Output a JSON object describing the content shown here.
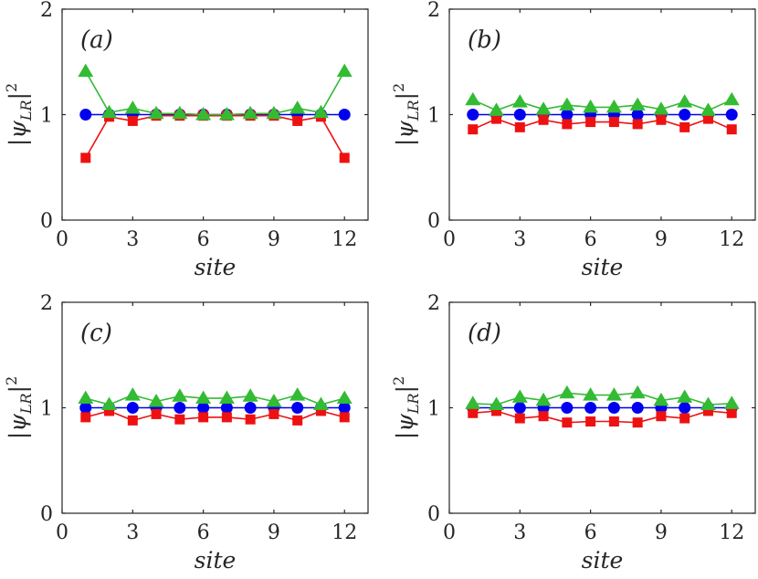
{
  "chart_data": [
    {
      "type": "line",
      "panel_label": "(a)",
      "xlabel": "site",
      "ylabel": "|ψLR|2",
      "ylabel_parts": {
        "open": "|",
        "psi": "ψ",
        "sub": "LR",
        "close": "|",
        "sup": "2"
      },
      "xlim": [
        0,
        13
      ],
      "ylim": [
        0,
        2
      ],
      "xticks": [
        0,
        3,
        6,
        9,
        12
      ],
      "yticks": [
        0,
        1,
        2
      ],
      "x": [
        1,
        2,
        3,
        4,
        5,
        6,
        7,
        8,
        9,
        10,
        11,
        12
      ],
      "series": [
        {
          "name": "blue",
          "color": "#0000ee",
          "marker": "circle",
          "values": [
            1.0,
            1.0,
            1.0,
            1.0,
            1.0,
            1.0,
            1.0,
            1.0,
            1.0,
            1.0,
            1.0,
            1.0
          ]
        },
        {
          "name": "red",
          "color": "#ee1111",
          "marker": "square",
          "values": [
            0.59,
            0.98,
            0.94,
            0.99,
            0.99,
            0.99,
            0.99,
            0.99,
            0.99,
            0.94,
            0.98,
            0.59
          ]
        },
        {
          "name": "green",
          "color": "#33bb33",
          "marker": "triangle",
          "values": [
            1.41,
            1.02,
            1.06,
            1.01,
            1.01,
            1.0,
            1.0,
            1.01,
            1.01,
            1.06,
            1.02,
            1.41
          ]
        }
      ]
    },
    {
      "type": "line",
      "panel_label": "(b)",
      "xlabel": "site",
      "ylabel": "|ψLR|2",
      "ylabel_parts": {
        "open": "|",
        "psi": "ψ",
        "sub": "LR",
        "close": "|",
        "sup": "2"
      },
      "xlim": [
        0,
        13
      ],
      "ylim": [
        0,
        2
      ],
      "xticks": [
        0,
        3,
        6,
        9,
        12
      ],
      "yticks": [
        0,
        1,
        2
      ],
      "x": [
        1,
        2,
        3,
        4,
        5,
        6,
        7,
        8,
        9,
        10,
        11,
        12
      ],
      "series": [
        {
          "name": "blue",
          "color": "#0000ee",
          "marker": "circle",
          "values": [
            1.0,
            1.0,
            1.0,
            1.0,
            1.0,
            1.0,
            1.0,
            1.0,
            1.0,
            1.0,
            1.0,
            1.0
          ]
        },
        {
          "name": "red",
          "color": "#ee1111",
          "marker": "square",
          "values": [
            0.86,
            0.96,
            0.88,
            0.95,
            0.91,
            0.93,
            0.93,
            0.91,
            0.95,
            0.88,
            0.96,
            0.86
          ]
        },
        {
          "name": "green",
          "color": "#33bb33",
          "marker": "triangle",
          "values": [
            1.14,
            1.04,
            1.12,
            1.05,
            1.09,
            1.07,
            1.07,
            1.09,
            1.05,
            1.12,
            1.04,
            1.14
          ]
        }
      ]
    },
    {
      "type": "line",
      "panel_label": "(c)",
      "xlabel": "site",
      "ylabel": "|ψLR|2",
      "ylabel_parts": {
        "open": "|",
        "psi": "ψ",
        "sub": "LR",
        "close": "|",
        "sup": "2"
      },
      "xlim": [
        0,
        13
      ],
      "ylim": [
        0,
        2
      ],
      "xticks": [
        0,
        3,
        6,
        9,
        12
      ],
      "yticks": [
        0,
        1,
        2
      ],
      "x": [
        1,
        2,
        3,
        4,
        5,
        6,
        7,
        8,
        9,
        10,
        11,
        12
      ],
      "series": [
        {
          "name": "blue",
          "color": "#0000ee",
          "marker": "circle",
          "values": [
            1.0,
            1.0,
            1.0,
            1.0,
            1.0,
            1.0,
            1.0,
            1.0,
            1.0,
            1.0,
            1.0,
            1.0
          ]
        },
        {
          "name": "red",
          "color": "#ee1111",
          "marker": "square",
          "values": [
            0.91,
            0.97,
            0.88,
            0.94,
            0.89,
            0.91,
            0.91,
            0.89,
            0.94,
            0.88,
            0.97,
            0.91
          ]
        },
        {
          "name": "green",
          "color": "#33bb33",
          "marker": "triangle",
          "values": [
            1.09,
            1.03,
            1.12,
            1.06,
            1.11,
            1.09,
            1.09,
            1.11,
            1.06,
            1.12,
            1.03,
            1.09
          ]
        }
      ]
    },
    {
      "type": "line",
      "panel_label": "(d)",
      "xlabel": "site",
      "ylabel": "|ψLR|2",
      "ylabel_parts": {
        "open": "|",
        "psi": "ψ",
        "sub": "LR",
        "close": "|",
        "sup": "2"
      },
      "xlim": [
        0,
        13
      ],
      "ylim": [
        0,
        2
      ],
      "xticks": [
        0,
        3,
        6,
        9,
        12
      ],
      "yticks": [
        0,
        1,
        2
      ],
      "x": [
        1,
        2,
        3,
        4,
        5,
        6,
        7,
        8,
        9,
        10,
        11,
        12
      ],
      "series": [
        {
          "name": "blue",
          "color": "#0000ee",
          "marker": "circle",
          "values": [
            1.0,
            1.0,
            1.0,
            1.0,
            1.0,
            1.0,
            1.0,
            1.0,
            1.0,
            1.0,
            1.0,
            1.0
          ]
        },
        {
          "name": "red",
          "color": "#ee1111",
          "marker": "square",
          "values": [
            0.95,
            0.97,
            0.9,
            0.92,
            0.86,
            0.87,
            0.87,
            0.86,
            0.92,
            0.9,
            0.97,
            0.95
          ]
        },
        {
          "name": "green",
          "color": "#33bb33",
          "marker": "triangle",
          "values": [
            1.04,
            1.03,
            1.1,
            1.07,
            1.14,
            1.12,
            1.12,
            1.14,
            1.07,
            1.1,
            1.03,
            1.04
          ]
        }
      ]
    }
  ]
}
